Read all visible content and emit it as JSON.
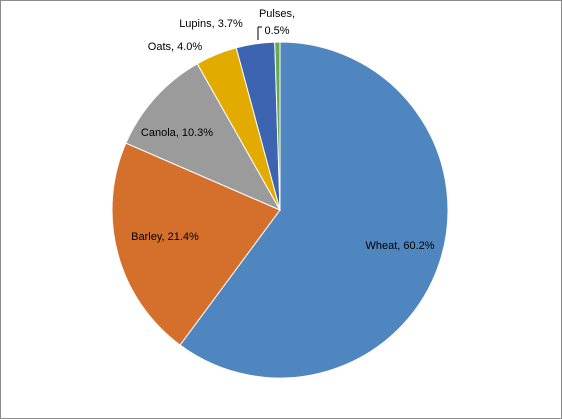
{
  "chart_data": {
    "type": "pie",
    "values": [
      60.2,
      21.4,
      10.3,
      4.0,
      3.7,
      0.5
    ],
    "value_labels": [
      "Wheat, 60.2%",
      "Barley, 21.4%",
      "Canola, 10.3%",
      "Oats, 4.0%",
      "Lupins, 3.7%",
      "Pulses, 0.5%"
    ],
    "colors": [
      "#4f86bf",
      "#d4702b",
      "#9b9b9b",
      "#e3ab00",
      "#3c64b1",
      "#6aa84f"
    ]
  }
}
